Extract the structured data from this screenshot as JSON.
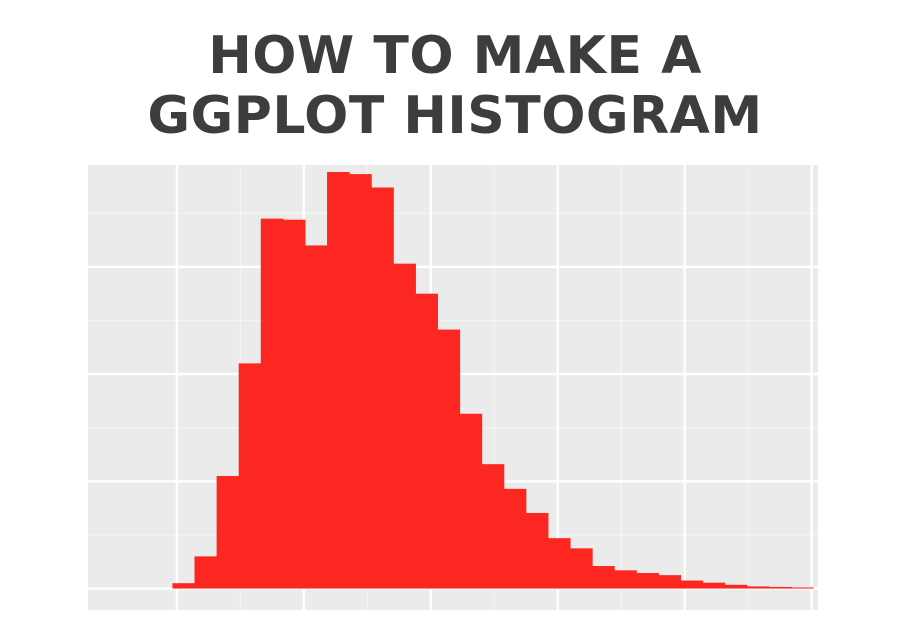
{
  "title": {
    "line1": "HOW TO MAKE A",
    "line2": "GGPLOT HISTOGRAM"
  },
  "colors": {
    "panel_background": "#ebebeb",
    "grid_major": "#ffffff",
    "grid_minor": "#f5f5f5",
    "bar_fill": "#fb2720",
    "title_text": "#3d3d3d"
  },
  "chart_data": {
    "type": "bar",
    "subtype": "histogram",
    "title": "",
    "xlabel": "",
    "ylabel": "",
    "tick_labels_shown": false,
    "grid": true,
    "xlim": [
      -0.7,
      5.05
    ],
    "ylim": [
      -4,
      79
    ],
    "x_major_breaks": [
      0,
      1,
      2,
      3,
      4,
      5
    ],
    "y_major_breaks": [
      0,
      20,
      40,
      60
    ],
    "y_minor_breaks": [
      10,
      30,
      50,
      70
    ],
    "bin_width": 0.174,
    "bins": [
      {
        "x_start": -0.035,
        "value": 1
      },
      {
        "x_start": 0.139,
        "value": 6
      },
      {
        "x_start": 0.313,
        "value": 21
      },
      {
        "x_start": 0.487,
        "value": 42
      },
      {
        "x_start": 0.661,
        "value": 69
      },
      {
        "x_start": 0.835,
        "value": 68.8
      },
      {
        "x_start": 1.009,
        "value": 64
      },
      {
        "x_start": 1.183,
        "value": 77.7
      },
      {
        "x_start": 1.357,
        "value": 77.3
      },
      {
        "x_start": 1.531,
        "value": 74.8
      },
      {
        "x_start": 1.705,
        "value": 60.6
      },
      {
        "x_start": 1.879,
        "value": 55
      },
      {
        "x_start": 2.053,
        "value": 48.3
      },
      {
        "x_start": 2.227,
        "value": 32.6
      },
      {
        "x_start": 2.401,
        "value": 23.2
      },
      {
        "x_start": 2.575,
        "value": 18.6
      },
      {
        "x_start": 2.749,
        "value": 14.1
      },
      {
        "x_start": 2.923,
        "value": 9.4
      },
      {
        "x_start": 3.097,
        "value": 7.5
      },
      {
        "x_start": 3.271,
        "value": 4.2
      },
      {
        "x_start": 3.445,
        "value": 3.4
      },
      {
        "x_start": 3.619,
        "value": 2.9
      },
      {
        "x_start": 3.793,
        "value": 2.5
      },
      {
        "x_start": 3.967,
        "value": 1.5
      },
      {
        "x_start": 4.141,
        "value": 1.1
      },
      {
        "x_start": 4.315,
        "value": 0.7
      },
      {
        "x_start": 4.489,
        "value": 0.4
      },
      {
        "x_start": 4.663,
        "value": 0.3
      },
      {
        "x_start": 4.837,
        "value": 0.2
      }
    ]
  }
}
